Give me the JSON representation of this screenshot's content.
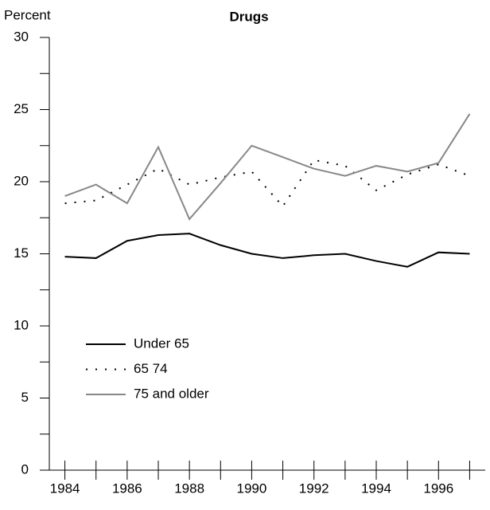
{
  "chart_data": {
    "type": "line",
    "title": "Drugs",
    "y_label": "Percent",
    "x": [
      1984,
      1985,
      1986,
      1987,
      1988,
      1989,
      1990,
      1991,
      1992,
      1993,
      1994,
      1995,
      1996,
      1997
    ],
    "series": [
      {
        "name": "Under 65",
        "color": "#000000",
        "style": "solid",
        "values": [
          14.8,
          14.7,
          15.9,
          16.3,
          16.4,
          15.6,
          15.0,
          14.7,
          14.9,
          15.0,
          14.5,
          14.1,
          15.1,
          15.0
        ]
      },
      {
        "name": "65 74",
        "color": "#000000",
        "style": "dotted",
        "values": [
          18.5,
          18.7,
          19.8,
          20.9,
          19.8,
          20.3,
          20.7,
          18.3,
          21.5,
          21.1,
          19.4,
          20.5,
          21.2,
          20.4
        ]
      },
      {
        "name": "75 and older",
        "color": "#888888",
        "style": "solid",
        "values": [
          19.0,
          19.8,
          18.5,
          22.4,
          17.4,
          19.9,
          22.5,
          21.7,
          20.9,
          20.4,
          21.1,
          20.7,
          21.3,
          24.7
        ]
      }
    ],
    "xlim": [
      1983.5,
      1997.5
    ],
    "xticks": [
      1984,
      1986,
      1988,
      1990,
      1992,
      1994,
      1996
    ],
    "ylim": [
      0,
      30
    ],
    "yticks": [
      0,
      5,
      10,
      15,
      20,
      25,
      30
    ],
    "grid": false,
    "legend": "lower left"
  }
}
